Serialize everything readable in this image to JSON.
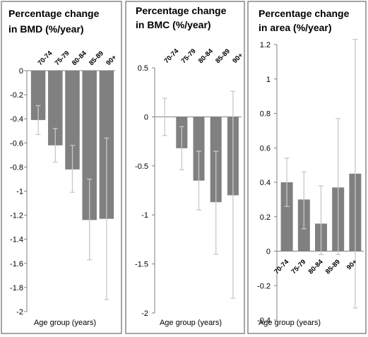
{
  "chart_data": [
    {
      "type": "bar",
      "title_lines": [
        "Percentage change",
        "in BMD (%/year)"
      ],
      "xlabel": "Age group (years)",
      "ylabel": "",
      "ylim": [
        -2,
        0
      ],
      "yticks": [
        "0",
        "-0.2",
        "-0.4",
        "-0.6",
        "-0.8",
        "-1",
        "-1.2",
        "-1.4",
        "-1.6",
        "-1.8",
        "-2"
      ],
      "ytick_values": [
        0,
        -0.2,
        -0.4,
        -0.6,
        -0.8,
        -1,
        -1.2,
        -1.4,
        -1.6,
        -1.8,
        -2
      ],
      "categories": [
        "70-74",
        "75-79",
        "80-84",
        "85-89",
        "90+"
      ],
      "values": [
        -0.41,
        -0.62,
        -0.82,
        -1.24,
        -1.23
      ],
      "error_low": [
        -0.53,
        -0.76,
        -1.01,
        -1.57,
        -1.9
      ],
      "error_high": [
        -0.29,
        -0.48,
        -0.62,
        -0.9,
        -0.56
      ],
      "category_label_position": "top",
      "bar_color": "#808080",
      "error_color": "#c8c8c8"
    },
    {
      "type": "bar",
      "title_lines": [
        "Percentage change",
        "in BMC (%/year)"
      ],
      "xlabel": "Age group (years)",
      "ylabel": "",
      "ylim": [
        -2,
        0.5
      ],
      "yticks": [
        "0.5",
        "0",
        "-0.5",
        "-1",
        "-1.5",
        "-2"
      ],
      "ytick_values": [
        0.5,
        0,
        -0.5,
        -1,
        -1.5,
        -2
      ],
      "categories": [
        "70-74",
        "75-79",
        "80-84",
        "85-89",
        "90+"
      ],
      "values": [
        0.0,
        -0.32,
        -0.65,
        -0.87,
        -0.8
      ],
      "error_low": [
        -0.19,
        -0.54,
        -0.95,
        -1.4,
        -1.85
      ],
      "error_high": [
        0.19,
        -0.1,
        -0.35,
        -0.35,
        0.26
      ],
      "category_label_position": "top",
      "bar_color": "#808080",
      "error_color": "#c8c8c8"
    },
    {
      "type": "bar",
      "title_lines": [
        "Percentage change",
        "in area (%/year)"
      ],
      "xlabel": "Age group (years)",
      "ylabel": "",
      "ylim": [
        -0.4,
        1.2
      ],
      "yticks": [
        "1.2",
        "1",
        "0.8",
        "0.6",
        "0.4",
        "0.2",
        "0",
        "-0.2",
        "-0.4"
      ],
      "ytick_values": [
        1.2,
        1,
        0.8,
        0.6,
        0.4,
        0.2,
        0,
        -0.2,
        -0.4
      ],
      "categories": [
        "70-74",
        "75-79",
        "80-84",
        "85-89",
        "90+"
      ],
      "values": [
        0.4,
        0.3,
        0.16,
        0.37,
        0.45
      ],
      "error_low": [
        0.26,
        0.13,
        -0.02,
        -0.02,
        -0.33
      ],
      "error_high": [
        0.54,
        0.46,
        0.38,
        0.77,
        1.23
      ],
      "category_label_position": "bottom",
      "bar_color": "#808080",
      "error_color": "#c8c8c8"
    }
  ]
}
